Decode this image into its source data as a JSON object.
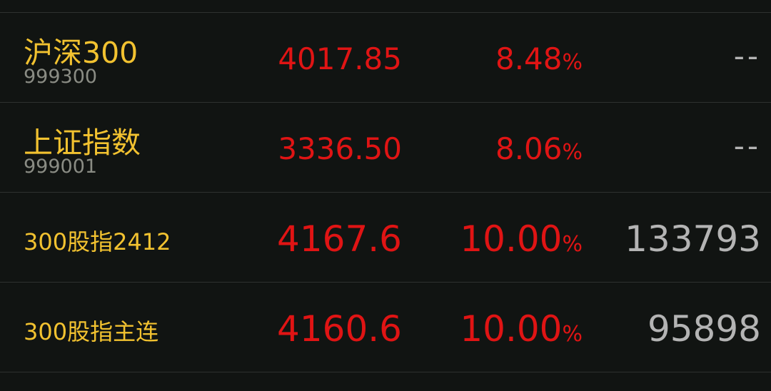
{
  "colors": {
    "background": "#111412",
    "name": "#f2c230",
    "up": "#e01414",
    "code": "#8a8c84",
    "volume": "#b4b4b4"
  },
  "rows": [
    {
      "name": "沪深300",
      "code": "999300",
      "price": "4017.85",
      "change": "8.48",
      "unit": "%",
      "volume": "--"
    },
    {
      "name": "上证指数",
      "code": "999001",
      "price": "3336.50",
      "change": "8.06",
      "unit": "%",
      "volume": "--"
    },
    {
      "name": "300股指2412",
      "price": "4167.6",
      "change": "10.00",
      "unit": "%",
      "volume": "133793"
    },
    {
      "name": "300股指主连",
      "price": "4160.6",
      "change": "10.00",
      "unit": "%",
      "volume": "95898"
    }
  ]
}
